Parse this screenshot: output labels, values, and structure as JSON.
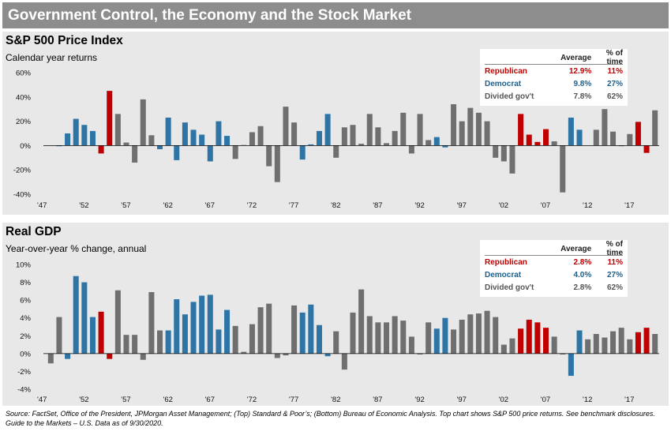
{
  "title": "Government Control, the Economy and the Stock Market",
  "colors": {
    "Republican": "#c00000",
    "Democrat": "#2e75a6",
    "Divided": "#6f6f6f"
  },
  "stats_header": {
    "average": "Average",
    "pct": "% of time"
  },
  "source": "Source: FactSet, Office of the President, JPMorgan Asset Management; (Top) Standard & Poor’s; (Bottom) Bureau of Economic Analysis. Top chart shows S&P 500 price returns. See benchmark disclosures. Guide to the Markets – U.S. Data as of 9/30/2020.",
  "chart_data": [
    {
      "type": "bar",
      "title": "S&P 500 Price Index",
      "subtitle": "Calendar year returns",
      "ylim": [
        -40,
        60
      ],
      "yticks": [
        "60%",
        "40%",
        "20%",
        "0%",
        "-20%",
        "-40%"
      ],
      "ytick_values": [
        60,
        40,
        20,
        0,
        -20,
        -40
      ],
      "xticks": [
        "'47",
        "'52",
        "'57",
        "'62",
        "'67",
        "'72",
        "'77",
        "'82",
        "'87",
        "'92",
        "'97",
        "'02",
        "'07",
        "'12",
        "'17"
      ],
      "x_start": 1947,
      "x_end": 2019,
      "legend_placement": "top-right",
      "stats": [
        {
          "party": "Republican",
          "average": "12.9%",
          "pct": "11%",
          "class": "rep"
        },
        {
          "party": "Democrat",
          "average": "9.8%",
          "pct": "27%",
          "class": "dem"
        },
        {
          "party": "Divided gov't",
          "average": "7.8%",
          "pct": "62%",
          "class": "div"
        }
      ],
      "years": [
        1947,
        1948,
        1949,
        1950,
        1951,
        1952,
        1953,
        1954,
        1955,
        1956,
        1957,
        1958,
        1959,
        1960,
        1961,
        1962,
        1963,
        1964,
        1965,
        1966,
        1967,
        1968,
        1969,
        1970,
        1971,
        1972,
        1973,
        1974,
        1975,
        1976,
        1977,
        1978,
        1979,
        1980,
        1981,
        1982,
        1983,
        1984,
        1985,
        1986,
        1987,
        1988,
        1989,
        1990,
        1991,
        1992,
        1993,
        1994,
        1995,
        1996,
        1997,
        1998,
        1999,
        2000,
        2001,
        2002,
        2003,
        2004,
        2005,
        2006,
        2007,
        2008,
        2009,
        2010,
        2011,
        2012,
        2013,
        2014,
        2015,
        2016,
        2017,
        2018,
        2019
      ],
      "values": [
        0,
        -0.5,
        10,
        22,
        17,
        12,
        -6.5,
        45,
        26,
        2.5,
        -14,
        38,
        8.5,
        -3,
        23,
        -12,
        19,
        13,
        9,
        -13,
        20,
        8,
        -11,
        0.5,
        11,
        16,
        -17,
        -30,
        32,
        19,
        -11.5,
        1,
        12,
        26,
        -10,
        15,
        17,
        1.5,
        26,
        15,
        2,
        12,
        27,
        -6.5,
        26,
        4.5,
        7,
        -1.5,
        34,
        20,
        31,
        27,
        20,
        -10,
        -13,
        -23,
        26,
        9,
        3,
        13.5,
        3.5,
        -38.5,
        23,
        13,
        0,
        13,
        30,
        11.5,
        -0.5,
        9.5,
        19.5,
        -6,
        29
      ],
      "parties": [
        "D",
        "D",
        "D",
        "D",
        "D",
        "D",
        "R",
        "R",
        "I",
        "I",
        "I",
        "I",
        "I",
        "D",
        "D",
        "D",
        "D",
        "D",
        "D",
        "D",
        "D",
        "D",
        "I",
        "I",
        "I",
        "I",
        "I",
        "I",
        "I",
        "I",
        "D",
        "D",
        "D",
        "D",
        "I",
        "I",
        "I",
        "I",
        "I",
        "I",
        "I",
        "I",
        "I",
        "I",
        "I",
        "I",
        "D",
        "D",
        "I",
        "I",
        "I",
        "I",
        "I",
        "I",
        "I",
        "I",
        "R",
        "R",
        "R",
        "R",
        "I",
        "I",
        "D",
        "D",
        "I",
        "I",
        "I",
        "I",
        "I",
        "I",
        "R",
        "R",
        "I"
      ]
    },
    {
      "type": "bar",
      "title": "Real GDP",
      "subtitle": "Year-over-year % change, annual",
      "ylim": [
        -4,
        10
      ],
      "yticks": [
        "10%",
        "8%",
        "6%",
        "4%",
        "2%",
        "0%",
        "-2%",
        "-4%"
      ],
      "ytick_values": [
        10,
        8,
        6,
        4,
        2,
        0,
        -2,
        -4
      ],
      "xticks": [
        "'47",
        "'52",
        "'57",
        "'62",
        "'67",
        "'72",
        "'77",
        "'82",
        "'87",
        "'92",
        "'97",
        "'02",
        "'07",
        "'12",
        "'17"
      ],
      "x_start": 1947,
      "x_end": 2019,
      "legend_placement": "top-right",
      "stats": [
        {
          "party": "Republican",
          "average": "2.8%",
          "pct": "11%",
          "class": "rep"
        },
        {
          "party": "Democrat",
          "average": "4.0%",
          "pct": "27%",
          "class": "dem"
        },
        {
          "party": "Divided gov't",
          "average": "2.8%",
          "pct": "62%",
          "class": "div"
        }
      ],
      "years": [
        1947,
        1948,
        1949,
        1950,
        1951,
        1952,
        1953,
        1954,
        1955,
        1956,
        1957,
        1958,
        1959,
        1960,
        1961,
        1962,
        1963,
        1964,
        1965,
        1966,
        1967,
        1968,
        1969,
        1970,
        1971,
        1972,
        1973,
        1974,
        1975,
        1976,
        1977,
        1978,
        1979,
        1980,
        1981,
        1982,
        1983,
        1984,
        1985,
        1986,
        1987,
        1988,
        1989,
        1990,
        1991,
        1992,
        1993,
        1994,
        1995,
        1996,
        1997,
        1998,
        1999,
        2000,
        2001,
        2002,
        2003,
        2004,
        2005,
        2006,
        2007,
        2008,
        2009,
        2010,
        2011,
        2012,
        2013,
        2014,
        2015,
        2016,
        2017,
        2018,
        2019
      ],
      "values": [
        -1.1,
        4.1,
        -0.6,
        8.7,
        8.0,
        4.1,
        4.7,
        -0.6,
        7.1,
        2.1,
        2.1,
        -0.7,
        6.9,
        2.6,
        2.6,
        6.1,
        4.4,
        5.8,
        6.5,
        6.6,
        2.7,
        4.9,
        3.1,
        0.2,
        3.3,
        5.2,
        5.6,
        -0.5,
        -0.2,
        5.4,
        4.6,
        5.5,
        3.2,
        -0.3,
        2.5,
        -1.8,
        4.6,
        7.2,
        4.2,
        3.5,
        3.5,
        4.2,
        3.7,
        1.9,
        -0.1,
        3.5,
        2.8,
        4.0,
        2.7,
        3.8,
        4.4,
        4.5,
        4.8,
        4.1,
        1.0,
        1.7,
        2.8,
        3.8,
        3.5,
        2.9,
        1.9,
        -0.1,
        -2.5,
        2.6,
        1.6,
        2.2,
        1.8,
        2.5,
        2.9,
        1.6,
        2.4,
        2.9,
        2.2
      ],
      "parties": [
        "I",
        "I",
        "D",
        "D",
        "D",
        "D",
        "R",
        "R",
        "I",
        "I",
        "I",
        "I",
        "I",
        "I",
        "D",
        "D",
        "D",
        "D",
        "D",
        "D",
        "D",
        "D",
        "I",
        "I",
        "I",
        "I",
        "I",
        "I",
        "I",
        "I",
        "D",
        "D",
        "D",
        "D",
        "I",
        "I",
        "I",
        "I",
        "I",
        "I",
        "I",
        "I",
        "I",
        "I",
        "I",
        "I",
        "D",
        "D",
        "I",
        "I",
        "I",
        "I",
        "I",
        "I",
        "I",
        "I",
        "R",
        "R",
        "R",
        "R",
        "I",
        "I",
        "D",
        "D",
        "I",
        "I",
        "I",
        "I",
        "I",
        "I",
        "R",
        "R",
        "I"
      ]
    }
  ]
}
